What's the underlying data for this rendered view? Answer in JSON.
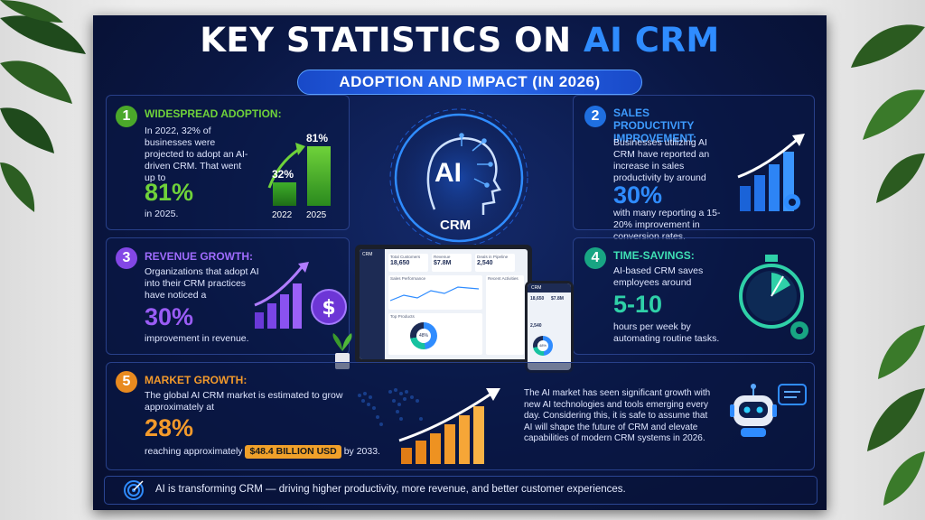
{
  "title": {
    "part1": "KEY STATISTICS ON",
    "part2": "AI CRM"
  },
  "subtitle": "ADOPTION AND IMPACT (IN 2026)",
  "center": {
    "ai_label": "AI",
    "crm_label": "CRM"
  },
  "cards": {
    "adoption": {
      "number": "1",
      "title": "WIDESPREAD ADOPTION:",
      "text": "In 2022, 32% of businesses were projected to adopt an AI-driven CRM. That went up to",
      "big": "81%",
      "after": "in 2025.",
      "bars": [
        {
          "year": "2022",
          "pct": "32%",
          "value": 32
        },
        {
          "year": "2025",
          "pct": "81%",
          "value": 81
        }
      ]
    },
    "productivity": {
      "number": "2",
      "title": "SALES PRODUCTIVITY IMPROVEMENT:",
      "text": "Businesses utilizing AI CRM have reported an increase in sales productivity by around",
      "big": "30%",
      "after": "with many reporting a 15-20% improvement in conversion rates."
    },
    "revenue": {
      "number": "3",
      "title": "REVENUE GROWTH:",
      "text": "Organizations that adopt AI into their CRM practices have noticed a",
      "big": "30%",
      "after": "improvement in revenue."
    },
    "time": {
      "number": "4",
      "title": "TIME-SAVINGS:",
      "text": "AI-based CRM saves employees around",
      "big": "5-10",
      "after": "hours per week by automating routine tasks."
    },
    "market": {
      "number": "5",
      "title": "MARKET GROWTH:",
      "text": "The global AI CRM market is estimated to grow approximately at",
      "big": "28%",
      "before_badge": "reaching approximately",
      "badge": "$48.4 BILLION USD",
      "after_badge": "by 2033.",
      "side_text": "The AI market has seen significant growth with new AI technologies and tools emerging every day. Considering this, it is safe to assume that AI will shape the future of CRM and elevate capabilities of modern CRM systems in 2026."
    }
  },
  "dashboard": {
    "app": "CRM",
    "stats": [
      {
        "label": "Total Customers",
        "value": "18,650"
      },
      {
        "label": "Revenue",
        "value": "$7.8M"
      },
      {
        "label": "Deals in Pipeline",
        "value": "2,540"
      }
    ],
    "sections": [
      "Sales Performance",
      "Top Products",
      "Recent Activities"
    ],
    "donut": "48%",
    "phone": {
      "app": "CRM",
      "v1": "18,650",
      "v2": "$7.8M",
      "v3": "2,540",
      "donut": "48%"
    }
  },
  "footer": "AI is transforming CRM — driving higher productivity, more revenue, and better customer experiences.",
  "colors": {
    "green": "#6fd23a",
    "blue": "#2f8cff",
    "purple": "#9a5cf5",
    "teal": "#2fd0a8",
    "orange": "#f39a2b",
    "navy": "#0a1744"
  },
  "icons": [
    "leaf-decoration",
    "ai-brain-icon",
    "rising-bars-icon",
    "gear-icon",
    "dollar-coin-icon",
    "stopwatch-icon",
    "robot-chat-icon",
    "target-icon",
    "plant-icon",
    "world-map-icon"
  ]
}
